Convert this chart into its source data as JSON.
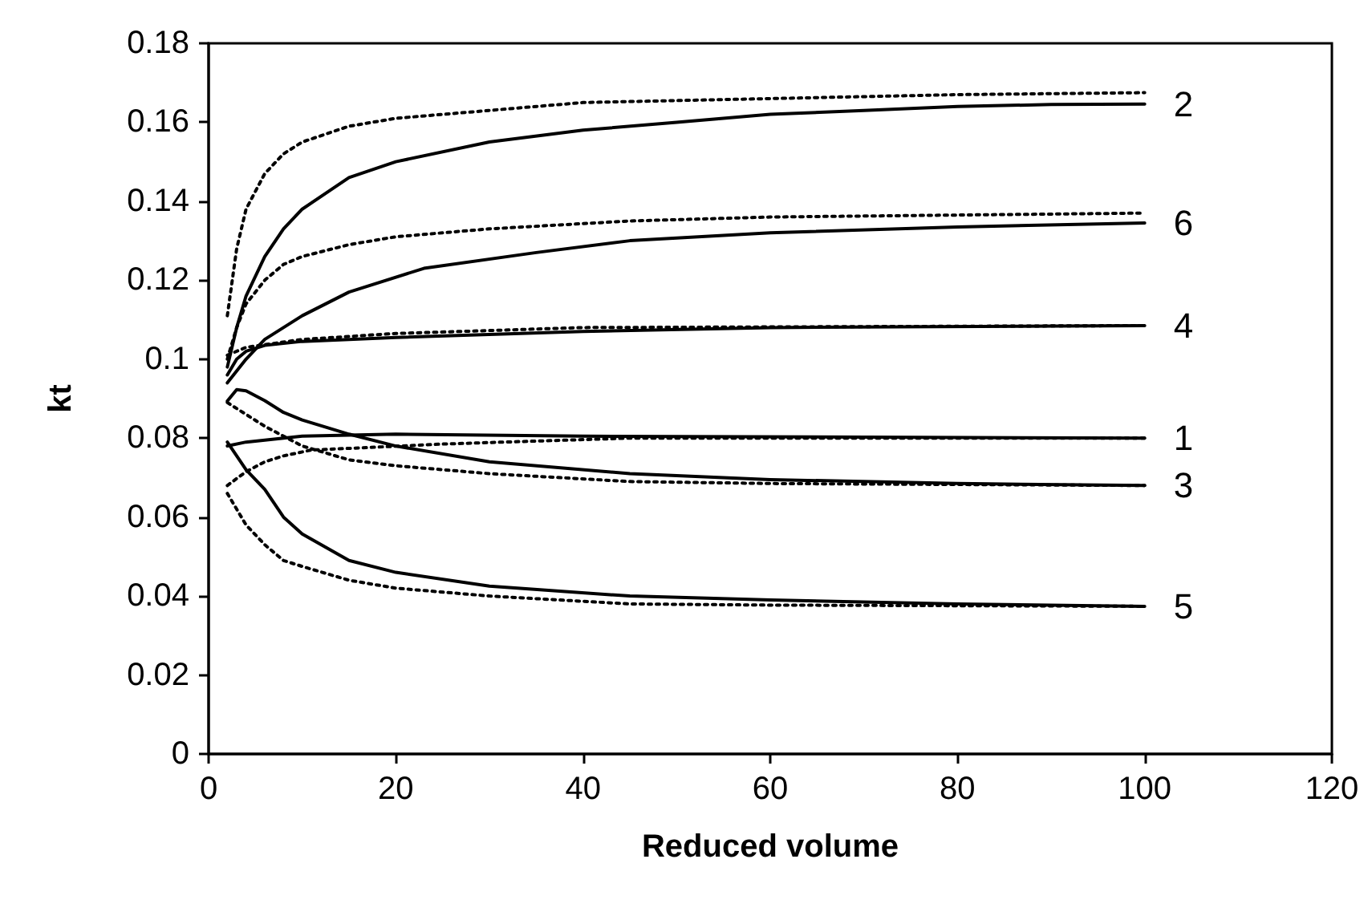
{
  "chart_data": {
    "type": "line",
    "xlabel": "Reduced volume",
    "ylabel": "kt",
    "xlim": [
      0,
      120
    ],
    "xticks": [
      0,
      20,
      40,
      60,
      80,
      100,
      120
    ],
    "ylim": [
      0,
      0.18
    ],
    "yticks": [
      0,
      0.02,
      0.04,
      0.06,
      0.08,
      0.1,
      0.12,
      0.14,
      0.16,
      0.18
    ],
    "grid": false,
    "marker": "none",
    "series": [
      {
        "name": "2",
        "color": "#000000",
        "line_style": "solid",
        "x": [
          2,
          3,
          4,
          6,
          8,
          10,
          15,
          20,
          30,
          40,
          50,
          60,
          70,
          80,
          90,
          100
        ],
        "values": [
          0.098,
          0.108,
          0.116,
          0.126,
          0.133,
          0.138,
          0.146,
          0.15,
          0.155,
          0.158,
          0.16,
          0.162,
          0.163,
          0.164,
          0.1645,
          0.1646
        ]
      },
      {
        "color": "#000000",
        "line_style": "dotted",
        "x": [
          2,
          3,
          4,
          6,
          8,
          10,
          15,
          20,
          30,
          40,
          60,
          80,
          100
        ],
        "values": [
          0.111,
          0.128,
          0.138,
          0.147,
          0.152,
          0.155,
          0.159,
          0.161,
          0.163,
          0.165,
          0.166,
          0.167,
          0.1675
        ]
      },
      {
        "name": "6",
        "color": "#000000",
        "line_style": "solid",
        "x": [
          2,
          4,
          6,
          10,
          15,
          23,
          35,
          45,
          60,
          80,
          100
        ],
        "values": [
          0.094,
          0.1,
          0.105,
          0.111,
          0.117,
          0.123,
          0.127,
          0.13,
          0.132,
          0.1335,
          0.1345
        ]
      },
      {
        "color": "#000000",
        "line_style": "dotted",
        "x": [
          2,
          3,
          4,
          6,
          8,
          10,
          15,
          20,
          30,
          45,
          60,
          80,
          100
        ],
        "values": [
          0.1,
          0.108,
          0.114,
          0.12,
          0.124,
          0.126,
          0.129,
          0.131,
          0.133,
          0.135,
          0.136,
          0.1365,
          0.137
        ]
      },
      {
        "name": "4",
        "color": "#000000",
        "line_style": "solid",
        "x": [
          2,
          3,
          4,
          6,
          10,
          20,
          40,
          60,
          100
        ],
        "values": [
          0.096,
          0.1,
          0.102,
          0.1035,
          0.1045,
          0.1055,
          0.107,
          0.108,
          0.1085
        ]
      },
      {
        "color": "#000000",
        "line_style": "dotted",
        "x": [
          2,
          4,
          10,
          20,
          40,
          100
        ],
        "values": [
          0.101,
          0.103,
          0.105,
          0.1065,
          0.108,
          0.1085
        ]
      },
      {
        "name": "1",
        "color": "#000000",
        "line_style": "solid",
        "x": [
          2,
          4,
          10,
          20,
          40,
          100
        ],
        "values": [
          0.078,
          0.079,
          0.0805,
          0.081,
          0.0805,
          0.08
        ]
      },
      {
        "color": "#000000",
        "line_style": "dotted",
        "x": [
          2,
          4,
          6,
          8,
          11,
          16,
          25,
          45,
          100
        ],
        "values": [
          0.068,
          0.0715,
          0.074,
          0.0755,
          0.077,
          0.0775,
          0.0785,
          0.08,
          0.08
        ]
      },
      {
        "name": "3",
        "color": "#000000",
        "line_style": "solid",
        "x": [
          2,
          3,
          4,
          6,
          8,
          10,
          15,
          20,
          30,
          45,
          60,
          80,
          100
        ],
        "values": [
          0.0894,
          0.0923,
          0.092,
          0.0895,
          0.0865,
          0.0846,
          0.081,
          0.078,
          0.074,
          0.071,
          0.0695,
          0.0685,
          0.068
        ]
      },
      {
        "color": "#000000",
        "line_style": "dotted",
        "x": [
          2,
          4,
          6,
          8,
          10,
          15,
          20,
          30,
          45,
          60,
          100
        ],
        "values": [
          0.089,
          0.086,
          0.083,
          0.0805,
          0.078,
          0.0745,
          0.073,
          0.071,
          0.069,
          0.0685,
          0.068
        ]
      },
      {
        "name": "5",
        "color": "#000000",
        "line_style": "solid",
        "x": [
          2,
          4,
          6,
          8,
          10,
          15,
          20,
          30,
          45,
          60,
          80,
          100
        ],
        "values": [
          0.079,
          0.072,
          0.067,
          0.06,
          0.0557,
          0.049,
          0.046,
          0.0425,
          0.04,
          0.039,
          0.038,
          0.0374
        ]
      },
      {
        "color": "#000000",
        "line_style": "dotted",
        "x": [
          2,
          4,
          6,
          8,
          10,
          15,
          20,
          30,
          45,
          60,
          100
        ],
        "values": [
          0.066,
          0.058,
          0.053,
          0.049,
          0.0475,
          0.044,
          0.042,
          0.04,
          0.038,
          0.0377,
          0.0374
        ]
      }
    ]
  }
}
